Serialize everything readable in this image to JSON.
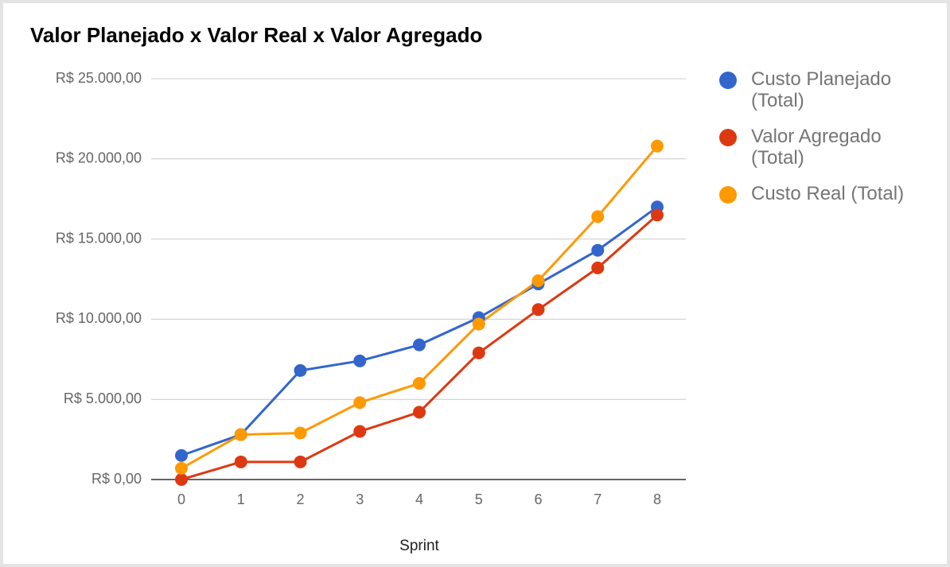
{
  "chart_data": {
    "type": "line",
    "title": "Valor Planejado x Valor Real x Valor Agregado",
    "x_label": "Sprint",
    "categories": [
      "0",
      "1",
      "2",
      "3",
      "4",
      "5",
      "6",
      "7",
      "8"
    ],
    "series": [
      {
        "name": "Custo Planejado (Total)",
        "color": "#3366cc",
        "values": [
          1500,
          2800,
          6800,
          7400,
          8400,
          10100,
          12200,
          14300,
          17000
        ]
      },
      {
        "name": "Valor Agregado (Total)",
        "color": "#dc3912",
        "values": [
          0,
          1100,
          1100,
          3000,
          4200,
          7900,
          10600,
          13200,
          16500
        ]
      },
      {
        "name": "Custo Real (Total)",
        "color": "#ff9900",
        "values": [
          700,
          2800,
          2900,
          4800,
          6000,
          9700,
          12400,
          16400,
          20800
        ]
      }
    ],
    "ylim": [
      0,
      25000
    ],
    "yticks": [
      {
        "value": 0,
        "label": "R$ 0,00"
      },
      {
        "value": 5000,
        "label": "R$ 5.000,00"
      },
      {
        "value": 10000,
        "label": "R$ 10.000,00"
      },
      {
        "value": 15000,
        "label": "R$ 15.000,00"
      },
      {
        "value": 20000,
        "label": "R$ 20.000,00"
      },
      {
        "value": 25000,
        "label": "R$ 25.000,00"
      }
    ],
    "grid": true,
    "legend": "right"
  }
}
